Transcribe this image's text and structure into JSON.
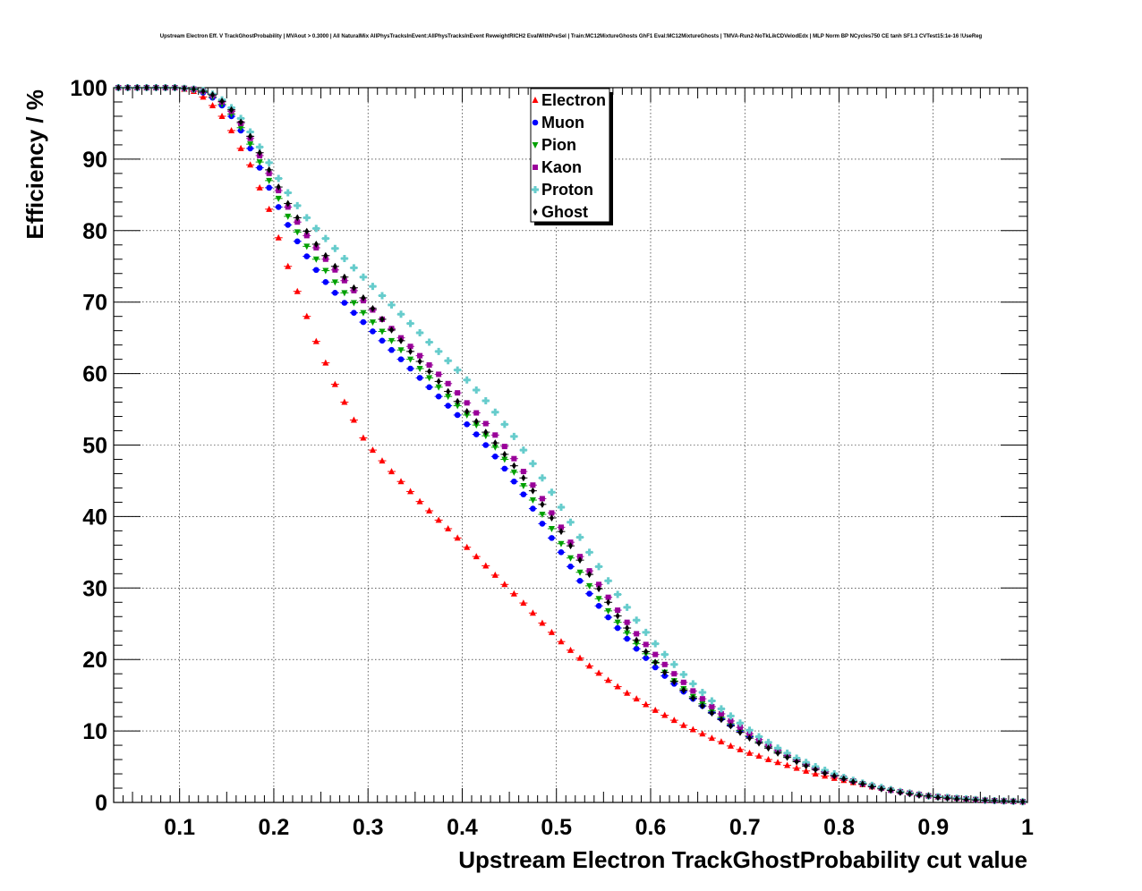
{
  "chart_data": {
    "type": "scatter",
    "title": "Upstream Electron Eff. V TrackGhostProbability | MVAout > 0.3000 | All NaturalMix AllPhysTracksInEvent:AllPhysTracksInEvent ReweightRICH2 EvalWithPreSel | Train:MC12MixtureGhosts GhF1 Eval:MC12MixtureGhosts | TMVA-Run2-NoTkLikCDVelodEdx | MLP Norm BP NCycles750 CE tanh SF1.3 CVTest15:1e-16 !UseReg",
    "xlabel": "Upstream Electron TrackGhostProbability cut value",
    "ylabel": "Efficiency / %",
    "xlim": [
      0.03,
      1.0
    ],
    "ylim": [
      0,
      100
    ],
    "xticks": [
      "0.1",
      "0.2",
      "0.3",
      "0.4",
      "0.5",
      "0.6",
      "0.7",
      "0.8",
      "0.9",
      "1"
    ],
    "yticks": [
      "0",
      "10",
      "20",
      "30",
      "40",
      "50",
      "60",
      "70",
      "80",
      "90",
      "100"
    ],
    "grid": true,
    "legend_position": "top-center",
    "x_start": 0.035,
    "x_step": 0.01,
    "series": [
      {
        "name": "Electron",
        "color": "#ff0000",
        "marker": "triangle-up",
        "values": [
          100,
          100,
          100,
          100,
          100,
          100,
          100,
          99.8,
          99.5,
          98.7,
          97.5,
          96.0,
          94.0,
          91.5,
          89.2,
          86.0,
          83.0,
          79.0,
          75.0,
          71.5,
          68.0,
          64.5,
          61.5,
          58.5,
          56.0,
          53.5,
          51.0,
          49.3,
          47.8,
          46.3,
          44.9,
          43.5,
          42.1,
          40.8,
          39.5,
          38.3,
          37.0,
          35.7,
          34.4,
          33.1,
          31.8,
          30.5,
          29.2,
          27.9,
          26.5,
          25.1,
          23.8,
          22.5,
          21.3,
          20.2,
          19.1,
          18.1,
          17.1,
          16.2,
          15.3,
          14.5,
          13.7,
          12.9,
          12.2,
          11.5,
          10.8,
          10.2,
          9.6,
          9.0,
          8.5,
          7.9,
          7.4,
          6.9,
          6.5,
          6.0,
          5.6,
          5.2,
          4.8,
          4.4,
          4.0,
          3.7,
          3.4,
          3.1,
          2.8,
          2.5,
          2.2,
          2.0,
          1.8,
          1.6,
          1.4,
          1.2,
          1.0,
          0.8,
          0.7,
          0.6,
          0.5,
          0.4,
          0.3,
          0.25,
          0.2,
          0.15,
          0.1,
          0.1
        ]
      },
      {
        "name": "Muon",
        "color": "#0000ff",
        "marker": "circle",
        "values": [
          100,
          100,
          100,
          100,
          100,
          100,
          100,
          99.9,
          99.7,
          99.3,
          98.6,
          97.5,
          96.0,
          94.0,
          91.5,
          88.8,
          86.0,
          83.3,
          80.8,
          78.5,
          76.4,
          74.5,
          72.8,
          71.3,
          69.9,
          68.5,
          67.2,
          65.9,
          64.6,
          63.3,
          62.0,
          60.7,
          59.4,
          58.1,
          56.8,
          55.5,
          54.2,
          52.9,
          51.5,
          50.0,
          48.4,
          46.7,
          44.9,
          43.1,
          41.1,
          39.0,
          37.0,
          35.0,
          33.0,
          31.0,
          29.2,
          27.5,
          25.9,
          24.4,
          22.9,
          21.5,
          20.2,
          18.9,
          17.7,
          16.6,
          15.5,
          14.5,
          13.5,
          12.6,
          11.7,
          10.8,
          10.0,
          9.2,
          8.5,
          7.8,
          7.1,
          6.5,
          5.9,
          5.3,
          4.8,
          4.3,
          3.8,
          3.4,
          3.0,
          2.6,
          2.3,
          2.0,
          1.7,
          1.5,
          1.3,
          1.1,
          0.9,
          0.8,
          0.7,
          0.6,
          0.5,
          0.4,
          0.3,
          0.25,
          0.2,
          0.15,
          0.1,
          0.1
        ]
      },
      {
        "name": "Pion",
        "color": "#00a000",
        "marker": "triangle-down",
        "values": [
          100,
          100,
          100,
          100,
          100,
          100,
          100,
          99.9,
          99.7,
          99.4,
          98.7,
          97.7,
          96.3,
          94.4,
          92.1,
          89.6,
          87.0,
          84.5,
          82.0,
          79.8,
          77.8,
          76.0,
          74.4,
          72.8,
          71.3,
          69.9,
          68.5,
          67.2,
          65.9,
          64.6,
          63.3,
          62.0,
          60.7,
          59.4,
          58.1,
          56.8,
          55.5,
          54.2,
          52.8,
          51.3,
          49.7,
          48.0,
          46.2,
          44.3,
          42.3,
          40.3,
          38.3,
          36.2,
          34.2,
          32.2,
          30.3,
          28.5,
          26.8,
          25.2,
          23.7,
          22.2,
          20.8,
          19.5,
          18.2,
          17.0,
          15.9,
          14.8,
          13.8,
          12.8,
          11.9,
          11.0,
          10.1,
          9.3,
          8.5,
          7.8,
          7.1,
          6.5,
          5.9,
          5.3,
          4.8,
          4.3,
          3.8,
          3.4,
          3.0,
          2.6,
          2.3,
          2.0,
          1.7,
          1.5,
          1.3,
          1.1,
          0.9,
          0.8,
          0.7,
          0.6,
          0.5,
          0.4,
          0.3,
          0.25,
          0.2,
          0.15,
          0.1,
          0.1
        ]
      },
      {
        "name": "Kaon",
        "color": "#990099",
        "marker": "square",
        "values": [
          100,
          100,
          100,
          100,
          100,
          100,
          100,
          99.9,
          99.8,
          99.5,
          98.9,
          98.0,
          96.7,
          95.0,
          92.9,
          90.5,
          88.0,
          85.6,
          83.3,
          81.2,
          79.3,
          77.6,
          76.0,
          74.5,
          73.0,
          71.6,
          70.2,
          68.9,
          67.6,
          66.3,
          65.0,
          63.8,
          62.5,
          61.2,
          59.9,
          58.6,
          57.3,
          55.9,
          54.5,
          53.0,
          51.4,
          49.8,
          48.1,
          46.3,
          44.4,
          42.5,
          40.5,
          38.5,
          36.4,
          34.4,
          32.4,
          30.5,
          28.7,
          26.9,
          25.2,
          23.6,
          22.1,
          20.7,
          19.3,
          18.0,
          16.8,
          15.6,
          14.5,
          13.4,
          12.4,
          11.4,
          10.5,
          9.6,
          8.8,
          8.0,
          7.3,
          6.6,
          6.0,
          5.4,
          4.8,
          4.3,
          3.8,
          3.4,
          3.0,
          2.6,
          2.3,
          2.0,
          1.7,
          1.5,
          1.3,
          1.1,
          0.9,
          0.8,
          0.7,
          0.6,
          0.5,
          0.4,
          0.3,
          0.25,
          0.2,
          0.15,
          0.1,
          0.1
        ]
      },
      {
        "name": "Proton",
        "color": "#66cccc",
        "marker": "cross",
        "values": [
          100,
          100,
          100,
          100,
          100,
          100,
          100,
          99.9,
          99.8,
          99.6,
          99.1,
          98.3,
          97.2,
          95.7,
          93.8,
          91.7,
          89.5,
          87.3,
          85.3,
          83.5,
          81.8,
          80.3,
          78.9,
          77.5,
          76.1,
          74.8,
          73.5,
          72.2,
          70.9,
          69.6,
          68.3,
          67.0,
          65.7,
          64.4,
          63.1,
          61.8,
          60.5,
          59.1,
          57.7,
          56.2,
          54.6,
          52.9,
          51.2,
          49.3,
          47.4,
          45.4,
          43.4,
          41.3,
          39.2,
          37.1,
          35.0,
          33.0,
          31.0,
          29.1,
          27.3,
          25.5,
          23.8,
          22.2,
          20.7,
          19.3,
          17.9,
          16.6,
          15.4,
          14.2,
          13.1,
          12.1,
          11.1,
          10.1,
          9.2,
          8.4,
          7.6,
          6.9,
          6.2,
          5.6,
          5.0,
          4.5,
          4.0,
          3.5,
          3.1,
          2.7,
          2.4,
          2.1,
          1.8,
          1.5,
          1.3,
          1.1,
          0.9,
          0.8,
          0.7,
          0.6,
          0.5,
          0.4,
          0.3,
          0.25,
          0.2,
          0.15,
          0.1,
          0.1
        ]
      },
      {
        "name": "Ghost",
        "color": "#000000",
        "marker": "diamond",
        "values": [
          100,
          100,
          100,
          100,
          100,
          100,
          100,
          99.9,
          99.8,
          99.5,
          99.0,
          98.1,
          96.9,
          95.2,
          93.2,
          90.9,
          88.5,
          86.1,
          83.8,
          81.8,
          79.9,
          78.1,
          76.5,
          75.0,
          73.5,
          72.0,
          70.6,
          69.1,
          67.6,
          66.1,
          64.6,
          63.1,
          61.7,
          60.3,
          58.9,
          57.5,
          56.1,
          54.7,
          53.3,
          51.8,
          50.3,
          48.7,
          47.1,
          45.4,
          43.6,
          41.7,
          39.8,
          37.9,
          35.9,
          33.9,
          31.9,
          29.9,
          28.0,
          26.1,
          24.4,
          22.7,
          21.1,
          19.6,
          18.2,
          16.9,
          15.7,
          14.6,
          13.5,
          12.5,
          11.6,
          10.7,
          9.8,
          9.0,
          8.3,
          7.6,
          6.9,
          6.3,
          5.7,
          5.1,
          4.6,
          4.1,
          3.7,
          3.3,
          2.9,
          2.6,
          2.2,
          1.9,
          1.7,
          1.4,
          1.2,
          1.0,
          0.9,
          0.7,
          0.6,
          0.5,
          0.4,
          0.35,
          0.3,
          0.25,
          0.2,
          0.15,
          0.1,
          0.1
        ]
      }
    ]
  }
}
